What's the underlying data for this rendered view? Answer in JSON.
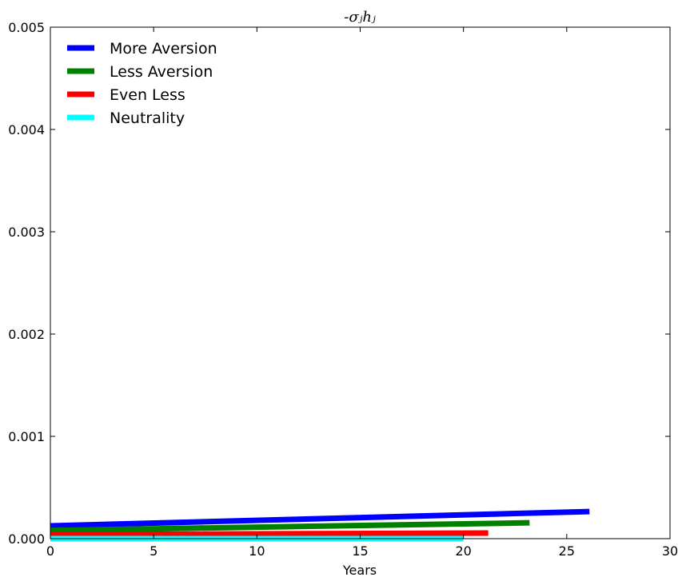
{
  "chart_data": {
    "type": "line",
    "title": "-σⱼhⱼ",
    "xlabel": "Years",
    "ylabel": "",
    "xlim": [
      0,
      30
    ],
    "ylim": [
      0,
      0.005
    ],
    "x_ticks": [
      "0",
      "5",
      "10",
      "15",
      "20",
      "25",
      "30"
    ],
    "y_ticks": [
      "0.000",
      "0.001",
      "0.002",
      "0.003",
      "0.004",
      "0.005"
    ],
    "grid": false,
    "legend_position": "top-left",
    "series": [
      {
        "name": "More Aversion",
        "color": "#0000ff",
        "x": [
          0,
          26.1
        ],
        "y": [
          0.000125,
          0.000265
        ]
      },
      {
        "name": "Less Aversion",
        "color": "#008000",
        "x": [
          0,
          23.2
        ],
        "y": [
          8e-05,
          0.000155
        ]
      },
      {
        "name": "Even Less",
        "color": "#ff0000",
        "x": [
          0,
          21.2
        ],
        "y": [
          4e-05,
          5.5e-05
        ]
      },
      {
        "name": "Neutrality",
        "color": "#00ffff",
        "x": [
          0,
          20.0
        ],
        "y": [
          0.0,
          0.0
        ]
      }
    ]
  }
}
